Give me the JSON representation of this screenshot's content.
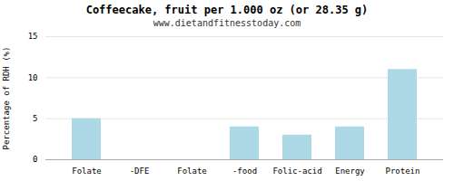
{
  "chart_data": {
    "type": "bar",
    "title": "Coffeecake, fruit per 1.000 oz (or 28.35 g)",
    "subtitle": "www.dietandfitnesstoday.com",
    "categories": [
      "Folate",
      "-DFE",
      "Folate",
      "-food",
      "Folic-acid",
      "Energy",
      "Protein"
    ],
    "values": [
      5.0,
      0.0,
      0.0,
      4.0,
      3.0,
      4.0,
      11.0
    ],
    "color": "#add8e6",
    "ylabel": "Percentage of RDH (%)",
    "ylim": [
      0,
      15
    ],
    "yticks": [
      0,
      5,
      10,
      15
    ],
    "grid": true
  }
}
